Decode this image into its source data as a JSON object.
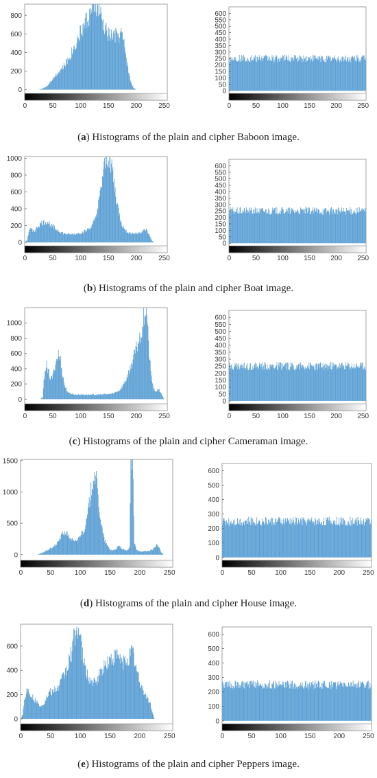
{
  "chart_data": [
    {
      "id": "baboon-plain",
      "type": "bar",
      "xlim": [
        0,
        255
      ],
      "ylim": [
        -40,
        920
      ],
      "xticks": [
        0,
        50,
        100,
        150,
        200,
        250
      ],
      "yticks": [
        0,
        200,
        400,
        600,
        800
      ],
      "color": "#5a9fd4",
      "profile": [
        [
          0,
          0
        ],
        [
          24,
          0
        ],
        [
          30,
          8
        ],
        [
          40,
          40
        ],
        [
          50,
          120
        ],
        [
          60,
          190
        ],
        [
          70,
          250
        ],
        [
          80,
          350
        ],
        [
          90,
          480
        ],
        [
          100,
          620
        ],
        [
          110,
          740
        ],
        [
          120,
          840
        ],
        [
          128,
          905
        ],
        [
          133,
          860
        ],
        [
          140,
          700
        ],
        [
          150,
          590
        ],
        [
          160,
          580
        ],
        [
          170,
          590
        ],
        [
          174,
          600
        ],
        [
          180,
          430
        ],
        [
          185,
          230
        ],
        [
          190,
          80
        ],
        [
          195,
          20
        ],
        [
          200,
          0
        ],
        [
          255,
          0
        ]
      ]
    },
    {
      "id": "baboon-cipher",
      "type": "bar",
      "xlim": [
        0,
        255
      ],
      "ylim": [
        -20,
        650
      ],
      "xticks": [
        0,
        50,
        100,
        150,
        200,
        250
      ],
      "yticks": [
        0,
        50,
        100,
        150,
        200,
        250,
        300,
        350,
        400,
        450,
        500,
        550,
        600
      ],
      "color": "#5a9fd4",
      "mean": 250,
      "jitter": 30
    },
    {
      "id": "boat-plain",
      "type": "bar",
      "xlim": [
        0,
        255
      ],
      "ylim": [
        -40,
        1020
      ],
      "xticks": [
        0,
        50,
        100,
        150,
        200,
        250
      ],
      "yticks": [
        0,
        200,
        400,
        600,
        800,
        1000
      ],
      "color": "#5a9fd4",
      "profile": [
        [
          0,
          0
        ],
        [
          4,
          30
        ],
        [
          8,
          160
        ],
        [
          12,
          150
        ],
        [
          18,
          140
        ],
        [
          24,
          200
        ],
        [
          30,
          230
        ],
        [
          40,
          245
        ],
        [
          50,
          190
        ],
        [
          60,
          140
        ],
        [
          70,
          105
        ],
        [
          80,
          95
        ],
        [
          90,
          100
        ],
        [
          100,
          115
        ],
        [
          110,
          140
        ],
        [
          120,
          190
        ],
        [
          125,
          260
        ],
        [
          130,
          380
        ],
        [
          135,
          560
        ],
        [
          140,
          800
        ],
        [
          145,
          960
        ],
        [
          148,
          1010
        ],
        [
          152,
          1010
        ],
        [
          156,
          920
        ],
        [
          160,
          700
        ],
        [
          165,
          470
        ],
        [
          170,
          320
        ],
        [
          175,
          200
        ],
        [
          180,
          145
        ],
        [
          190,
          110
        ],
        [
          200,
          105
        ],
        [
          210,
          130
        ],
        [
          218,
          150
        ],
        [
          224,
          80
        ],
        [
          228,
          20
        ],
        [
          232,
          0
        ],
        [
          255,
          0
        ]
      ]
    },
    {
      "id": "boat-cipher",
      "type": "bar",
      "xlim": [
        0,
        255
      ],
      "ylim": [
        -20,
        650
      ],
      "xticks": [
        0,
        50,
        100,
        150,
        200,
        250
      ],
      "yticks": [
        0,
        50,
        100,
        150,
        200,
        250,
        300,
        350,
        400,
        450,
        500,
        550,
        600
      ],
      "color": "#5a9fd4",
      "mean": 250,
      "jitter": 30
    },
    {
      "id": "cameraman-plain",
      "type": "bar",
      "xlim": [
        0,
        255
      ],
      "ylim": [
        -60,
        1200
      ],
      "xticks": [
        0,
        50,
        100,
        150,
        200,
        250
      ],
      "yticks": [
        0,
        200,
        400,
        600,
        800,
        1000
      ],
      "color": "#5a9fd4",
      "profile": [
        [
          0,
          0
        ],
        [
          28,
          0
        ],
        [
          32,
          30
        ],
        [
          35,
          320
        ],
        [
          38,
          470
        ],
        [
          42,
          380
        ],
        [
          46,
          260
        ],
        [
          50,
          300
        ],
        [
          55,
          480
        ],
        [
          60,
          580
        ],
        [
          64,
          510
        ],
        [
          68,
          300
        ],
        [
          72,
          160
        ],
        [
          78,
          80
        ],
        [
          90,
          60
        ],
        [
          110,
          60
        ],
        [
          130,
          60
        ],
        [
          150,
          65
        ],
        [
          160,
          80
        ],
        [
          170,
          120
        ],
        [
          180,
          230
        ],
        [
          190,
          420
        ],
        [
          200,
          660
        ],
        [
          205,
          780
        ],
        [
          210,
          900
        ],
        [
          213,
          1100
        ],
        [
          216,
          1200
        ],
        [
          219,
          1150
        ],
        [
          222,
          700
        ],
        [
          226,
          350
        ],
        [
          230,
          160
        ],
        [
          234,
          90
        ],
        [
          240,
          140
        ],
        [
          245,
          70
        ],
        [
          250,
          0
        ],
        [
          255,
          0
        ]
      ]
    },
    {
      "id": "cameraman-cipher",
      "type": "bar",
      "xlim": [
        0,
        255
      ],
      "ylim": [
        -20,
        650
      ],
      "xticks": [
        0,
        50,
        100,
        150,
        200,
        250
      ],
      "yticks": [
        0,
        50,
        100,
        150,
        200,
        250,
        300,
        350,
        400,
        450,
        500,
        550,
        600
      ],
      "color": "#5a9fd4",
      "mean": 250,
      "jitter": 30
    },
    {
      "id": "house-plain",
      "type": "bar",
      "xlim": [
        0,
        255
      ],
      "ylim": [
        -90,
        1520
      ],
      "xticks": [
        0,
        50,
        100,
        150,
        200,
        250
      ],
      "yticks": [
        0,
        500,
        1000,
        1500
      ],
      "color": "#5a9fd4",
      "profile": [
        [
          0,
          0
        ],
        [
          28,
          0
        ],
        [
          34,
          20
        ],
        [
          40,
          50
        ],
        [
          50,
          100
        ],
        [
          60,
          160
        ],
        [
          65,
          250
        ],
        [
          70,
          330
        ],
        [
          75,
          360
        ],
        [
          80,
          300
        ],
        [
          85,
          250
        ],
        [
          90,
          200
        ],
        [
          95,
          230
        ],
        [
          100,
          320
        ],
        [
          105,
          380
        ],
        [
          110,
          500
        ],
        [
          115,
          800
        ],
        [
          120,
          1150
        ],
        [
          123,
          1310
        ],
        [
          126,
          1250
        ],
        [
          130,
          900
        ],
        [
          135,
          500
        ],
        [
          140,
          250
        ],
        [
          145,
          150
        ],
        [
          150,
          80
        ],
        [
          155,
          70
        ],
        [
          160,
          90
        ],
        [
          165,
          140
        ],
        [
          170,
          90
        ],
        [
          178,
          60
        ],
        [
          183,
          120
        ],
        [
          185,
          1500
        ],
        [
          188,
          1500
        ],
        [
          191,
          180
        ],
        [
          195,
          70
        ],
        [
          205,
          50
        ],
        [
          215,
          60
        ],
        [
          222,
          80
        ],
        [
          228,
          160
        ],
        [
          232,
          120
        ],
        [
          236,
          40
        ],
        [
          240,
          0
        ],
        [
          255,
          0
        ]
      ]
    },
    {
      "id": "house-cipher",
      "type": "bar",
      "xlim": [
        0,
        255
      ],
      "ylim": [
        -20,
        650
      ],
      "xticks": [
        0,
        50,
        100,
        150,
        200,
        250
      ],
      "yticks": [
        0,
        100,
        200,
        300,
        400,
        500,
        600
      ],
      "color": "#5a9fd4",
      "mean": 250,
      "jitter": 32
    },
    {
      "id": "peppers-plain",
      "type": "bar",
      "xlim": [
        0,
        255
      ],
      "ylim": [
        -40,
        780
      ],
      "xticks": [
        0,
        50,
        100,
        150,
        200,
        250
      ],
      "yticks": [
        0,
        200,
        400,
        600
      ],
      "color": "#5a9fd4",
      "profile": [
        [
          0,
          0
        ],
        [
          3,
          40
        ],
        [
          6,
          150
        ],
        [
          10,
          240
        ],
        [
          14,
          230
        ],
        [
          18,
          190
        ],
        [
          24,
          150
        ],
        [
          30,
          120
        ],
        [
          36,
          110
        ],
        [
          42,
          160
        ],
        [
          48,
          220
        ],
        [
          55,
          230
        ],
        [
          62,
          250
        ],
        [
          70,
          330
        ],
        [
          78,
          420
        ],
        [
          85,
          550
        ],
        [
          90,
          680
        ],
        [
          95,
          760
        ],
        [
          100,
          650
        ],
        [
          105,
          480
        ],
        [
          110,
          380
        ],
        [
          118,
          310
        ],
        [
          125,
          290
        ],
        [
          130,
          340
        ],
        [
          138,
          420
        ],
        [
          146,
          470
        ],
        [
          152,
          490
        ],
        [
          158,
          500
        ],
        [
          165,
          520
        ],
        [
          170,
          460
        ],
        [
          176,
          480
        ],
        [
          182,
          520
        ],
        [
          188,
          560
        ],
        [
          194,
          420
        ],
        [
          200,
          300
        ],
        [
          205,
          250
        ],
        [
          212,
          180
        ],
        [
          218,
          120
        ],
        [
          222,
          40
        ],
        [
          225,
          0
        ],
        [
          255,
          0
        ]
      ]
    },
    {
      "id": "peppers-cipher",
      "type": "bar",
      "xlim": [
        0,
        255
      ],
      "ylim": [
        -20,
        650
      ],
      "xticks": [
        0,
        50,
        100,
        150,
        200,
        250
      ],
      "yticks": [
        0,
        100,
        200,
        300,
        400,
        500,
        600
      ],
      "color": "#5a9fd4",
      "mean": 250,
      "jitter": 30
    }
  ],
  "captions": [
    {
      "letter": "a",
      "text": " Histograms of the plain and cipher Baboon image."
    },
    {
      "letter": "b",
      "text": " Histograms of the plain and cipher Boat image."
    },
    {
      "letter": "c",
      "text": " Histograms of the plain and cipher Cameraman image."
    },
    {
      "letter": "d",
      "text": " Histograms of the plain and cipher House image."
    },
    {
      "letter": "e",
      "text": " Histograms of the plain and cipher Peppers image."
    }
  ]
}
